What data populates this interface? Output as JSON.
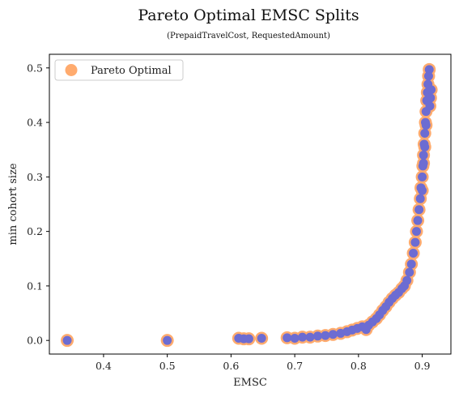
{
  "chart_data": {
    "type": "scatter",
    "title": "Pareto Optimal EMSC Splits",
    "subtitle": "(PrepaidTravelCost, RequestedAmount)",
    "xlabel": "EMSC",
    "ylabel": "min cohort size",
    "xlim": [
      0.315,
      0.945
    ],
    "ylim": [
      -0.025,
      0.525
    ],
    "xticks": [
      "0.4",
      "0.5",
      "0.6",
      "0.7",
      "0.8",
      "0.9"
    ],
    "yticks": [
      "0.0",
      "0.1",
      "0.2",
      "0.3",
      "0.4",
      "0.5"
    ],
    "grid": false,
    "legend": {
      "position": "top-left",
      "entries": [
        "Pareto Optimal"
      ]
    },
    "colors": {
      "halo": "#ffab6e",
      "point": "#6c6cd2"
    },
    "series": [
      {
        "name": "Pareto Optimal",
        "points": [
          [
            0.343,
            0.0
          ],
          [
            0.5,
            0.0
          ],
          [
            0.612,
            0.004
          ],
          [
            0.62,
            0.003
          ],
          [
            0.628,
            0.003
          ],
          [
            0.648,
            0.004
          ],
          [
            0.688,
            0.005
          ],
          [
            0.7,
            0.004
          ],
          [
            0.712,
            0.006
          ],
          [
            0.724,
            0.006
          ],
          [
            0.736,
            0.008
          ],
          [
            0.748,
            0.009
          ],
          [
            0.76,
            0.011
          ],
          [
            0.772,
            0.013
          ],
          [
            0.782,
            0.016
          ],
          [
            0.79,
            0.019
          ],
          [
            0.798,
            0.022
          ],
          [
            0.806,
            0.025
          ],
          [
            0.812,
            0.02
          ],
          [
            0.816,
            0.028
          ],
          [
            0.822,
            0.034
          ],
          [
            0.828,
            0.04
          ],
          [
            0.833,
            0.047
          ],
          [
            0.838,
            0.055
          ],
          [
            0.843,
            0.062
          ],
          [
            0.848,
            0.07
          ],
          [
            0.853,
            0.077
          ],
          [
            0.858,
            0.083
          ],
          [
            0.863,
            0.088
          ],
          [
            0.868,
            0.095
          ],
          [
            0.872,
            0.1
          ],
          [
            0.876,
            0.11
          ],
          [
            0.88,
            0.125
          ],
          [
            0.883,
            0.14
          ],
          [
            0.886,
            0.16
          ],
          [
            0.889,
            0.18
          ],
          [
            0.891,
            0.2
          ],
          [
            0.893,
            0.22
          ],
          [
            0.895,
            0.24
          ],
          [
            0.897,
            0.26
          ],
          [
            0.898,
            0.28
          ],
          [
            0.9,
            0.3
          ],
          [
            0.901,
            0.32
          ],
          [
            0.902,
            0.34
          ],
          [
            0.903,
            0.36
          ],
          [
            0.904,
            0.38
          ],
          [
            0.905,
            0.4
          ],
          [
            0.906,
            0.42
          ],
          [
            0.907,
            0.44
          ],
          [
            0.908,
            0.455
          ],
          [
            0.909,
            0.47
          ],
          [
            0.91,
            0.485
          ],
          [
            0.911,
            0.497
          ],
          [
            0.912,
            0.43
          ],
          [
            0.913,
            0.445
          ],
          [
            0.914,
            0.46
          ],
          [
            0.9,
            0.275
          ],
          [
            0.902,
            0.325
          ],
          [
            0.904,
            0.355
          ],
          [
            0.906,
            0.395
          ]
        ]
      }
    ]
  }
}
